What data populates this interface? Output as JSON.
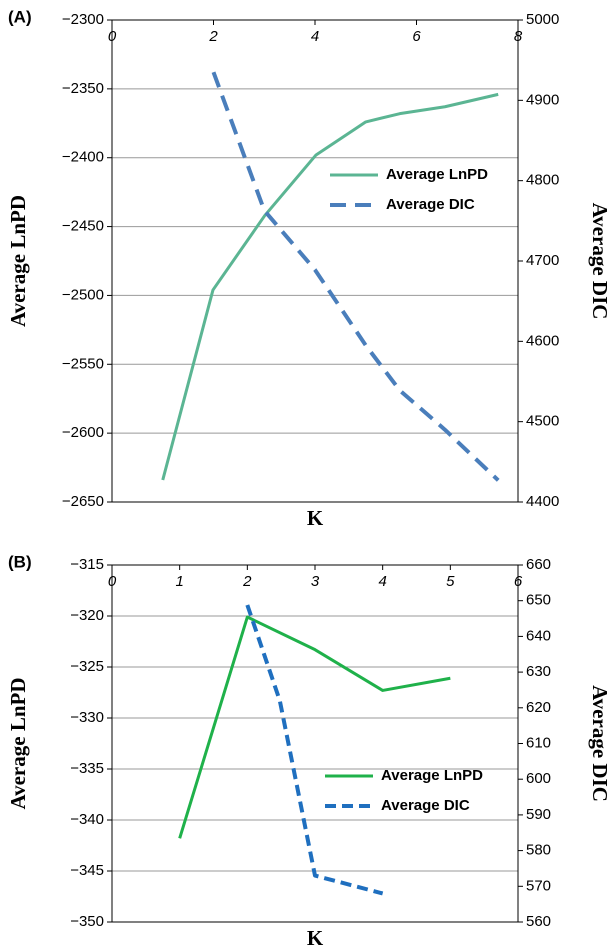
{
  "chart_data": [
    {
      "type": "line",
      "panel_label": "(A)",
      "x_label": "K",
      "y_label": "Average LnPD",
      "y2_label": "Average DIC",
      "xlim": [
        0,
        8
      ],
      "xticks": [
        0,
        2,
        4,
        6,
        8
      ],
      "ylim": [
        -2650,
        -2300
      ],
      "yticks": [
        {
          "value": -2650,
          "label": "−2650"
        },
        {
          "value": -2600,
          "label": "−2600"
        },
        {
          "value": -2550,
          "label": "−2550"
        },
        {
          "value": -2500,
          "label": "−2500"
        },
        {
          "value": -2450,
          "label": "−2450"
        },
        {
          "value": -2400,
          "label": "−2400"
        },
        {
          "value": -2350,
          "label": "−2350"
        },
        {
          "value": -2300,
          "label": "−2300"
        }
      ],
      "y2lim": [
        4400,
        5000
      ],
      "y2ticks": [
        4400,
        4500,
        4600,
        4700,
        4800,
        4900,
        5000
      ],
      "grid": true,
      "legend": "right",
      "series": [
        {
          "name": "Average LnPD",
          "color": "#5bb593",
          "dash": false,
          "x": [
            1.0,
            1.99,
            3.01,
            4.02,
            5.0,
            5.67,
            6.56,
            7.61
          ],
          "values": [
            -2634,
            -2496,
            -2442,
            -2398,
            -2374,
            -2368,
            -2363,
            -2354
          ]
        },
        {
          "name": "Average DIC",
          "color": "#4a7ebb",
          "dash": true,
          "axis": "y2",
          "x": [
            2.0,
            3.0,
            4.0,
            5.0,
            5.67,
            6.56,
            7.61
          ],
          "values": [
            4935,
            4763,
            4689,
            4595,
            4539,
            4490,
            4427
          ]
        }
      ]
    },
    {
      "type": "line",
      "panel_label": "(B)",
      "x_label": "K",
      "y_label": "Average LnPD",
      "y2_label": "Average DIC",
      "xlim": [
        0,
        6
      ],
      "xticks": [
        0,
        1,
        2,
        3,
        4,
        5,
        6
      ],
      "ylim": [
        -350,
        -315
      ],
      "yticks": [
        {
          "value": -350,
          "label": "−350"
        },
        {
          "value": -345,
          "label": "−345"
        },
        {
          "value": -340,
          "label": "−340"
        },
        {
          "value": -335,
          "label": "−335"
        },
        {
          "value": -330,
          "label": "−330"
        },
        {
          "value": -325,
          "label": "−325"
        },
        {
          "value": -320,
          "label": "−320"
        },
        {
          "value": -315,
          "label": "−315"
        }
      ],
      "y2lim": [
        560,
        660
      ],
      "y2ticks": [
        560,
        570,
        580,
        590,
        600,
        610,
        620,
        630,
        640,
        650,
        660
      ],
      "grid": true,
      "legend": "right",
      "series": [
        {
          "name": "Average LnPD",
          "color": "#1fb14a",
          "dash": false,
          "x": [
            1,
            2,
            3,
            4,
            5
          ],
          "values": [
            -341.8,
            -320.1,
            -323.3,
            -327.3,
            -326.1
          ]
        },
        {
          "name": "Average DIC",
          "color": "#1f6fbf",
          "dash": true,
          "axis": "y2",
          "x": [
            2.0,
            2.48,
            3.0,
            4.0
          ],
          "values": [
            648.8,
            622,
            573,
            568
          ]
        }
      ]
    }
  ]
}
